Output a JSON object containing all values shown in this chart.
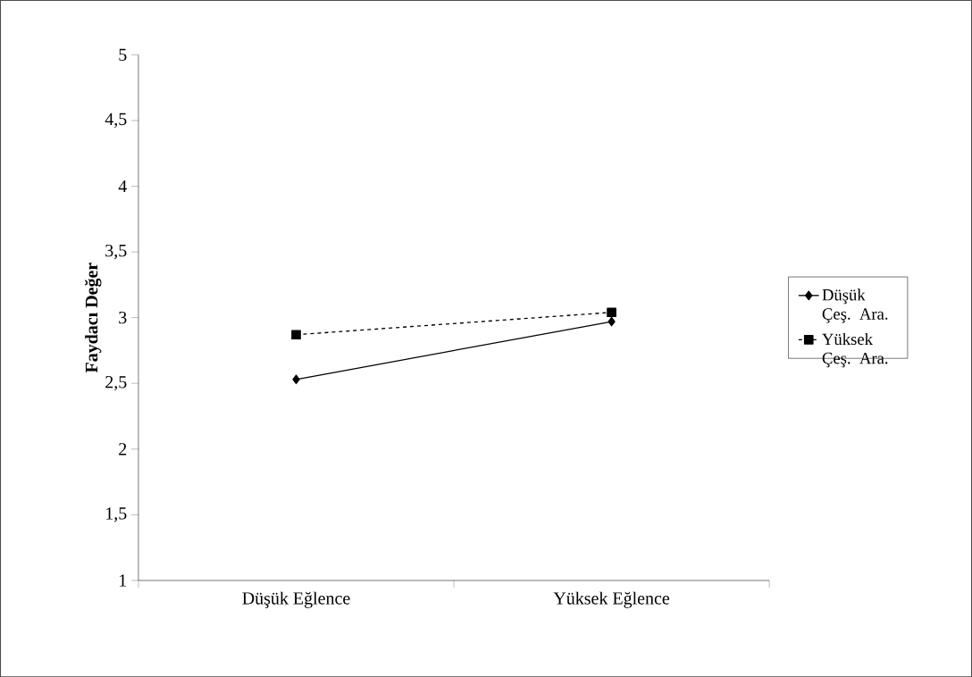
{
  "chart_data": {
    "type": "line",
    "ylabel": "Faydacı Değer",
    "categories": [
      "Düşük Eğlence",
      "Yüksek Eğlence"
    ],
    "series": [
      {
        "name": "Düşük Çeş. Ara.",
        "color": "#000000",
        "values": [
          2.53,
          2.97
        ],
        "marker": "diamond",
        "line_style": "solid"
      },
      {
        "name": "Yüksek Çeş. Ara.",
        "color": "#000000",
        "values": [
          2.87,
          3.04
        ],
        "marker": "square",
        "line_style": "dashed"
      }
    ],
    "ylim": [
      1,
      5
    ],
    "yticks": [
      1,
      {
        "value": 1.5,
        "label": "1,5"
      },
      2,
      {
        "value": 2.5,
        "label": "2,5"
      },
      3,
      {
        "value": 3.5,
        "label": "3,5"
      },
      4,
      {
        "value": 4.5,
        "label": "4,5"
      },
      5
    ],
    "grid": false,
    "legend": "right"
  }
}
